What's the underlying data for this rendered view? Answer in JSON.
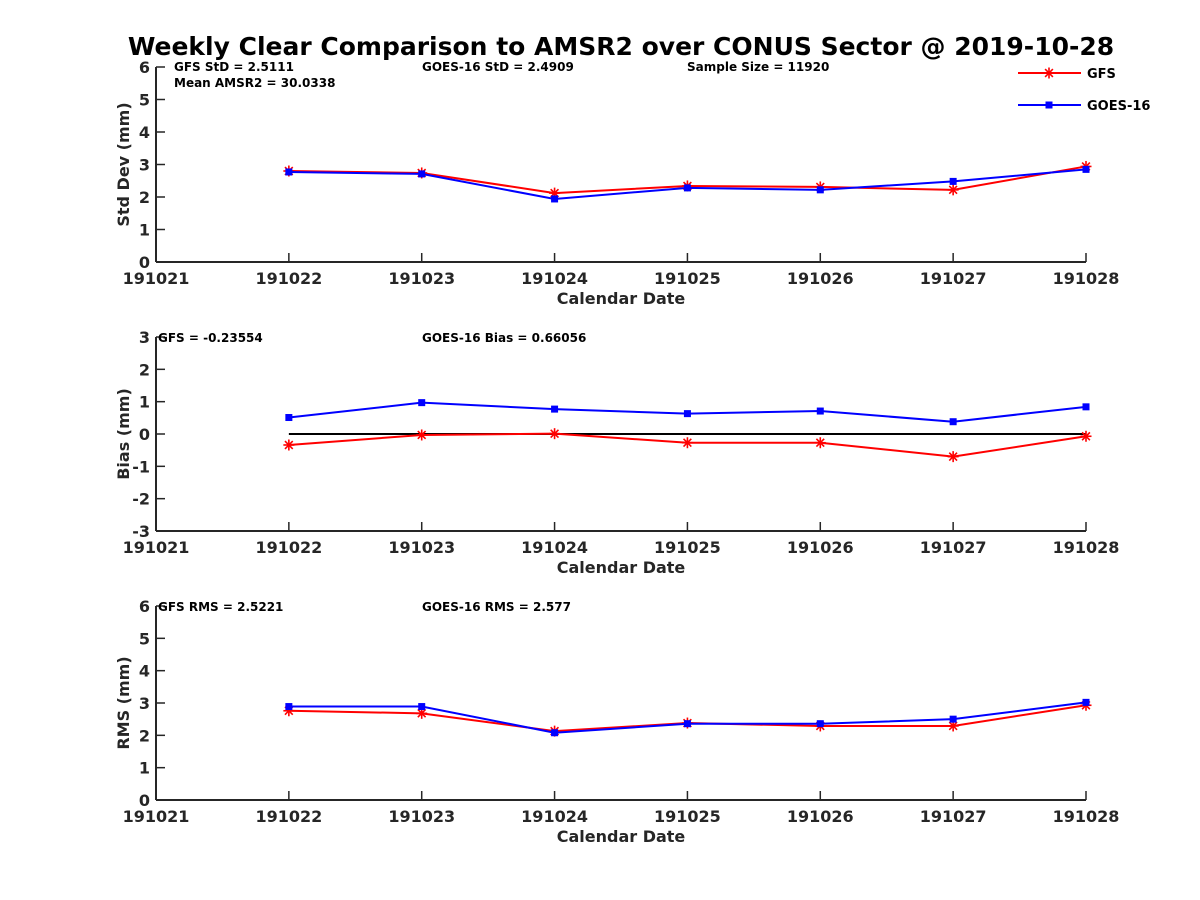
{
  "title": "Weekly Clear Comparison to AMSR2 over CONUS Sector @ 2019-10-28",
  "legend": {
    "placement": "top-right",
    "entries": [
      {
        "name": "GFS",
        "color": "#ff0000",
        "marker": "asterisk"
      },
      {
        "name": "GOES-16",
        "color": "#0000ff",
        "marker": "square"
      }
    ]
  },
  "chart_data": [
    {
      "type": "line",
      "title": "",
      "xlabel": "Calendar Date",
      "ylabel": "Std Dev (mm)",
      "ylim": [
        0,
        6
      ],
      "yticks": [
        "0",
        "1",
        "2",
        "3",
        "4",
        "5",
        "6"
      ],
      "x": [
        "191021",
        "191022",
        "191023",
        "191024",
        "191025",
        "191026",
        "191027",
        "191028"
      ],
      "series": [
        {
          "name": "GFS",
          "color": "#ff0000",
          "values": [
            null,
            2.8,
            2.74,
            2.12,
            2.34,
            2.31,
            2.22,
            2.94
          ]
        },
        {
          "name": "GOES-16",
          "color": "#0000ff",
          "values": [
            null,
            2.77,
            2.71,
            1.94,
            2.28,
            2.22,
            2.48,
            2.85
          ]
        }
      ],
      "annotations": [
        "GFS StD = 2.5111",
        "GOES-16 StD = 2.4909",
        "Sample Size = 11920",
        "Mean AMSR2 = 30.0338"
      ],
      "reference_line": null
    },
    {
      "type": "line",
      "title": "",
      "xlabel": "Calendar Date",
      "ylabel": "Bias (mm)",
      "ylim": [
        -3,
        3
      ],
      "yticks": [
        "-3",
        "-2",
        "-1",
        "0",
        "1",
        "2",
        "3"
      ],
      "x": [
        "191021",
        "191022",
        "191023",
        "191024",
        "191025",
        "191026",
        "191027",
        "191028"
      ],
      "series": [
        {
          "name": "GFS",
          "color": "#ff0000",
          "values": [
            null,
            -0.34,
            -0.03,
            0.01,
            -0.27,
            -0.27,
            -0.7,
            -0.07
          ]
        },
        {
          "name": "GOES-16",
          "color": "#0000ff",
          "values": [
            null,
            0.51,
            0.97,
            0.77,
            0.63,
            0.71,
            0.38,
            0.84
          ]
        }
      ],
      "annotations": [
        "GFS = -0.23554",
        "GOES-16 Bias  = 0.66056"
      ],
      "reference_line": {
        "y": 0,
        "color": "#000000",
        "from": "191022",
        "to": "191028"
      }
    },
    {
      "type": "line",
      "title": "",
      "xlabel": "Calendar Date",
      "ylabel": "RMS (mm)",
      "ylim": [
        0,
        6
      ],
      "yticks": [
        "0",
        "1",
        "2",
        "3",
        "4",
        "5",
        "6"
      ],
      "x": [
        "191021",
        "191022",
        "191023",
        "191024",
        "191025",
        "191026",
        "191027",
        "191028"
      ],
      "series": [
        {
          "name": "GFS",
          "color": "#ff0000",
          "values": [
            null,
            2.76,
            2.68,
            2.13,
            2.38,
            2.29,
            2.29,
            2.93
          ]
        },
        {
          "name": "GOES-16",
          "color": "#0000ff",
          "values": [
            null,
            2.89,
            2.89,
            2.08,
            2.36,
            2.36,
            2.5,
            3.02
          ]
        }
      ],
      "annotations": [
        "GFS RMS = 2.5221",
        "GOES-16 RMS = 2.577"
      ],
      "reference_line": null
    }
  ]
}
